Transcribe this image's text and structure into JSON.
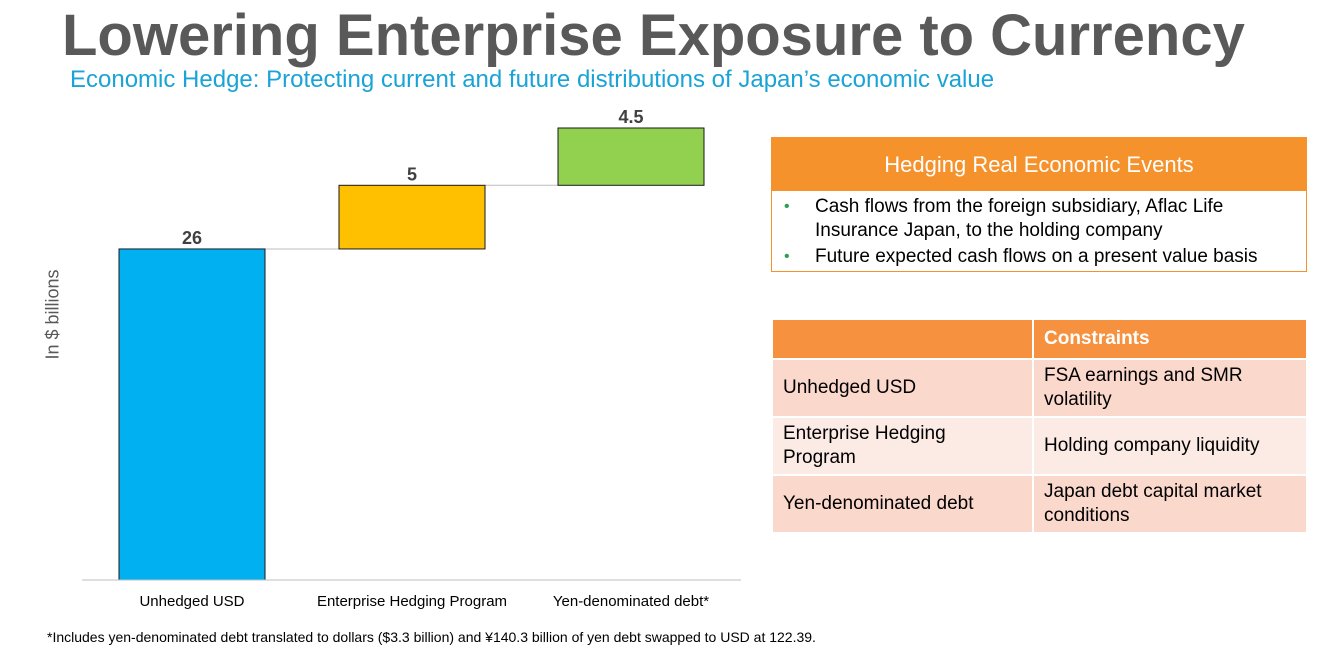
{
  "title": "Lowering Enterprise Exposure to Currency",
  "subtitle": "Economic Hedge:  Protecting current and future distributions of Japan’s economic value",
  "chart_data": {
    "type": "bar",
    "subtype": "waterfall",
    "categories": [
      "Unhedged USD",
      "Enterprise Hedging Program",
      "Yen-denominated debt*"
    ],
    "values": [
      26,
      5,
      4.5
    ],
    "value_labels": [
      "26",
      "5",
      "4.5"
    ],
    "bases": [
      0,
      26,
      31
    ],
    "colors": [
      "#00B0F0",
      "#FFC000",
      "#92D050"
    ],
    "ylabel": "In $ billions",
    "ylim": [
      0,
      35.5
    ],
    "grid": false,
    "legend": "none"
  },
  "hedging_box": {
    "header": "Hedging Real Economic Events",
    "bullet_glyph": "•",
    "items": [
      "Cash flows from the foreign subsidiary, Aflac Life Insurance Japan, to the holding company",
      "Future expected cash flows on a present value basis"
    ]
  },
  "constraints_table": {
    "header_left": "",
    "header_right": "Constraints",
    "rows": [
      {
        "left": "Unhedged USD",
        "right": "FSA earnings and SMR volatility"
      },
      {
        "left": "Enterprise Hedging Program",
        "right": "Holding company liquidity"
      },
      {
        "left": "Yen-denominated debt",
        "right": "Japan debt capital market conditions"
      }
    ]
  },
  "footnote": "*Includes yen-denominated debt translated to dollars ($3.3 billion) and ¥140.3 billion of yen debt swapped to USD at 122.39."
}
